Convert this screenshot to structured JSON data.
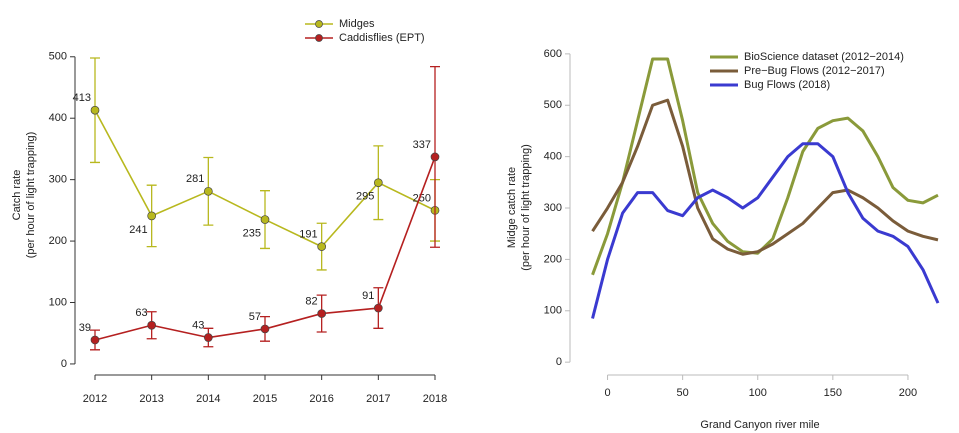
{
  "chart_data": [
    {
      "type": "line",
      "ylabel": [
        "Catch rate",
        "(per hour of light trapping)"
      ],
      "categories": [
        "2012",
        "2013",
        "2014",
        "2015",
        "2016",
        "2017",
        "2018"
      ],
      "series": [
        {
          "name": "Midges",
          "color": "#b8b81e",
          "values": [
            413,
            241,
            281,
            235,
            191,
            295,
            250
          ],
          "errors": [
            85,
            50,
            55,
            47,
            38,
            60,
            50
          ]
        },
        {
          "name": "Caddisflies (EPT)",
          "color": "#b52020",
          "values": [
            39,
            63,
            43,
            57,
            82,
            91,
            337
          ],
          "errors": [
            16,
            22,
            15,
            20,
            30,
            33,
            147
          ]
        }
      ],
      "ylim": [
        -18,
        568
      ],
      "yticks": [
        0,
        100,
        200,
        300,
        400,
        500
      ],
      "legend": "top-right",
      "data_labels": true
    },
    {
      "type": "line",
      "xlabel": "Grand Canyon river mile",
      "ylabel": [
        "Midge catch rate",
        "(per hour of light trapping)"
      ],
      "x": [
        -10,
        0,
        10,
        20,
        30,
        40,
        50,
        60,
        70,
        80,
        90,
        100,
        110,
        120,
        130,
        140,
        150,
        160,
        170,
        180,
        190,
        200,
        210,
        220
      ],
      "series": [
        {
          "name": "BioScience dataset (2012−2014)",
          "color": "#8a9a3a",
          "values": [
            170,
            250,
            350,
            470,
            590,
            590,
            470,
            330,
            270,
            235,
            215,
            212,
            240,
            320,
            410,
            455,
            470,
            475,
            450,
            400,
            340,
            315,
            310,
            325
          ]
        },
        {
          "name": "Pre−Bug Flows (2012−2017)",
          "color": "#7a5c3a",
          "values": [
            255,
            300,
            350,
            420,
            500,
            510,
            420,
            300,
            240,
            220,
            210,
            215,
            230,
            250,
            270,
            300,
            330,
            335,
            320,
            300,
            275,
            255,
            245,
            238
          ]
        },
        {
          "name": "Bug Flows (2018)",
          "color": "#3a3ad0",
          "values": [
            85,
            200,
            290,
            330,
            330,
            295,
            285,
            320,
            335,
            320,
            300,
            320,
            360,
            400,
            425,
            425,
            400,
            330,
            280,
            255,
            245,
            225,
            180,
            115
          ]
        }
      ],
      "xlim": [
        -25,
        228
      ],
      "xticks": [
        0,
        50,
        100,
        150,
        200
      ],
      "ylim": [
        -25,
        627
      ],
      "yticks": [
        0,
        100,
        200,
        300,
        400,
        500,
        600
      ],
      "legend": "top-right"
    }
  ]
}
